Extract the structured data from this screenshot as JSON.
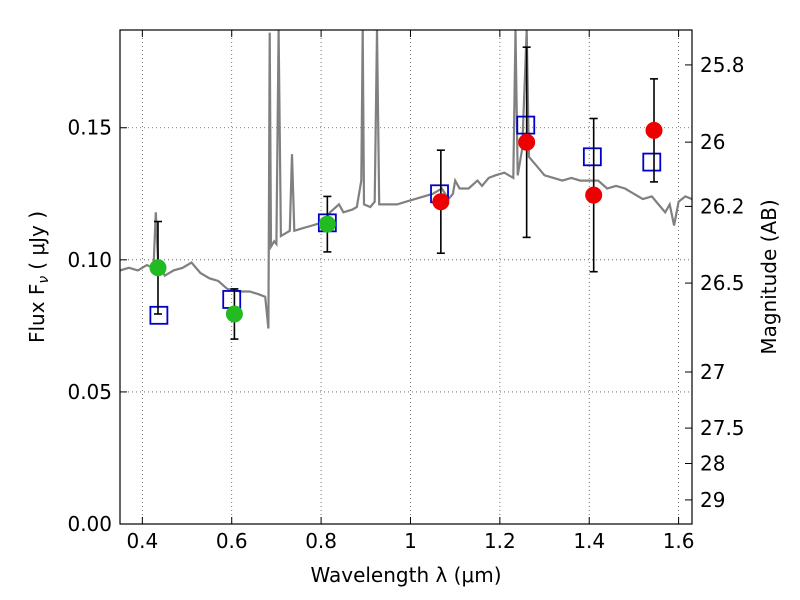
{
  "chart_data": {
    "type": "scatter",
    "xlabel": "Wavelength  λ (μm)",
    "ylabel": "Flux  F",
    "ylabel_sub": "ν",
    "ylabel_unit": "( μJy )",
    "y2label": "Magnitude (AB)",
    "xlim": [
      0.35,
      1.63
    ],
    "ylim": [
      0.0,
      0.187
    ],
    "x_ticks": [
      0.4,
      0.6,
      0.8,
      1.0,
      1.2,
      1.4,
      1.6
    ],
    "x_tick_labels": [
      "0.4",
      "0.6",
      "0.8",
      "1",
      "1.2",
      "1.4",
      "1.6"
    ],
    "y_ticks": [
      0.0,
      0.05,
      0.1,
      0.15
    ],
    "y_tick_labels": [
      "0.00",
      "0.05",
      "0.10",
      "0.15"
    ],
    "y2_ticks": [
      25.8,
      26,
      26.2,
      26.5,
      27,
      27.5,
      28,
      29
    ],
    "y2_tick_labels": [
      "25.8",
      "26",
      "26.2",
      "26.5",
      "27",
      "27.5",
      "28",
      "29"
    ],
    "grid": true,
    "colors": {
      "spectrum": "#808080",
      "green": "#22bb22",
      "red": "#ee0000",
      "blue_square": "#0000cc",
      "errorbar": "#000000"
    },
    "series": [
      {
        "marker": "circle-green",
        "points": [
          {
            "x": 0.435,
            "y": 0.097,
            "yerr": 0.0175
          },
          {
            "x": 0.606,
            "y": 0.0795,
            "yerr": 0.0095
          },
          {
            "x": 0.814,
            "y": 0.1135,
            "yerr": 0.0105
          }
        ]
      },
      {
        "marker": "circle-red",
        "points": [
          {
            "x": 1.068,
            "y": 0.122,
            "yerr": 0.0195
          },
          {
            "x": 1.26,
            "y": 0.1445,
            "yerr": 0.036
          },
          {
            "x": 1.41,
            "y": 0.1245,
            "yerr": 0.029
          },
          {
            "x": 1.545,
            "y": 0.149,
            "yerr": 0.0195
          }
        ]
      },
      {
        "marker": "square-blue",
        "points": [
          {
            "x": 0.437,
            "y": 0.079
          },
          {
            "x": 0.6,
            "y": 0.085
          },
          {
            "x": 0.814,
            "y": 0.114
          },
          {
            "x": 1.065,
            "y": 0.125
          },
          {
            "x": 1.258,
            "y": 0.151
          },
          {
            "x": 1.407,
            "y": 0.139
          },
          {
            "x": 1.54,
            "y": 0.137
          }
        ]
      }
    ],
    "spectrum": [
      [
        0.35,
        0.096
      ],
      [
        0.37,
        0.097
      ],
      [
        0.39,
        0.096
      ],
      [
        0.41,
        0.098
      ],
      [
        0.425,
        0.097
      ],
      [
        0.43,
        0.118
      ],
      [
        0.435,
        0.1
      ],
      [
        0.45,
        0.094
      ],
      [
        0.47,
        0.096
      ],
      [
        0.49,
        0.097
      ],
      [
        0.51,
        0.099
      ],
      [
        0.53,
        0.095
      ],
      [
        0.55,
        0.093
      ],
      [
        0.57,
        0.092
      ],
      [
        0.59,
        0.089
      ],
      [
        0.62,
        0.088
      ],
      [
        0.64,
        0.088
      ],
      [
        0.66,
        0.087
      ],
      [
        0.675,
        0.086
      ],
      [
        0.682,
        0.074
      ],
      [
        0.685,
        0.186
      ],
      [
        0.688,
        0.105
      ],
      [
        0.695,
        0.107
      ],
      [
        0.7,
        0.106
      ],
      [
        0.705,
        0.187
      ],
      [
        0.71,
        0.109
      ],
      [
        0.72,
        0.11
      ],
      [
        0.73,
        0.111
      ],
      [
        0.735,
        0.14
      ],
      [
        0.74,
        0.111
      ],
      [
        0.76,
        0.112
      ],
      [
        0.78,
        0.113
      ],
      [
        0.8,
        0.114
      ],
      [
        0.81,
        0.115
      ],
      [
        0.82,
        0.118
      ],
      [
        0.84,
        0.121
      ],
      [
        0.85,
        0.118
      ],
      [
        0.87,
        0.119
      ],
      [
        0.88,
        0.12
      ],
      [
        0.89,
        0.13
      ],
      [
        0.893,
        0.187
      ],
      [
        0.896,
        0.121
      ],
      [
        0.91,
        0.12
      ],
      [
        0.92,
        0.122
      ],
      [
        0.925,
        0.187
      ],
      [
        0.93,
        0.121
      ],
      [
        0.95,
        0.121
      ],
      [
        0.97,
        0.121
      ],
      [
        0.99,
        0.122
      ],
      [
        1.01,
        0.123
      ],
      [
        1.03,
        0.124
      ],
      [
        1.05,
        0.125
      ],
      [
        1.07,
        0.127
      ],
      [
        1.085,
        0.123
      ],
      [
        1.095,
        0.125
      ],
      [
        1.1,
        0.13
      ],
      [
        1.11,
        0.127
      ],
      [
        1.13,
        0.127
      ],
      [
        1.15,
        0.13
      ],
      [
        1.16,
        0.128
      ],
      [
        1.175,
        0.131
      ],
      [
        1.19,
        0.132
      ],
      [
        1.21,
        0.133
      ],
      [
        1.23,
        0.131
      ],
      [
        1.235,
        0.187
      ],
      [
        1.24,
        0.132
      ],
      [
        1.25,
        0.142
      ],
      [
        1.26,
        0.187
      ],
      [
        1.265,
        0.139
      ],
      [
        1.28,
        0.136
      ],
      [
        1.3,
        0.132
      ],
      [
        1.32,
        0.131
      ],
      [
        1.34,
        0.13
      ],
      [
        1.36,
        0.131
      ],
      [
        1.38,
        0.13
      ],
      [
        1.4,
        0.13
      ],
      [
        1.42,
        0.13
      ],
      [
        1.44,
        0.127
      ],
      [
        1.46,
        0.128
      ],
      [
        1.48,
        0.127
      ],
      [
        1.5,
        0.125
      ],
      [
        1.52,
        0.123
      ],
      [
        1.54,
        0.124
      ],
      [
        1.56,
        0.12
      ],
      [
        1.57,
        0.118
      ],
      [
        1.58,
        0.121
      ],
      [
        1.59,
        0.113
      ],
      [
        1.6,
        0.122
      ],
      [
        1.615,
        0.124
      ],
      [
        1.63,
        0.123
      ]
    ]
  }
}
